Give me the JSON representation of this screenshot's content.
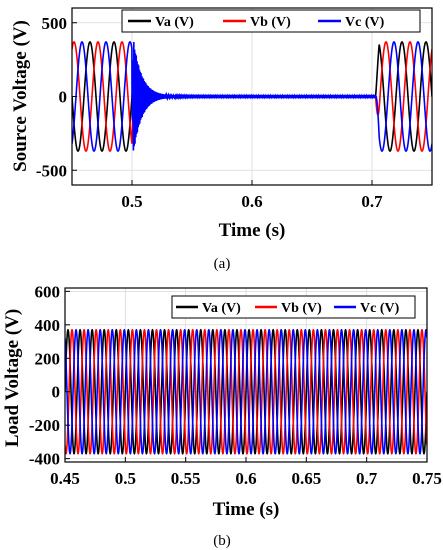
{
  "chart_data": [
    {
      "type": "line",
      "ylabel": "Source Voltage (V)",
      "xlabel": "Time (s)",
      "xlim": [
        0.45,
        0.75
      ],
      "ylim": [
        -600,
        600
      ],
      "xticks": [
        0.5,
        0.6,
        0.7
      ],
      "xtick_labels": [
        "0.5",
        "0.6",
        "0.7"
      ],
      "yticks": [
        -500,
        0,
        500
      ],
      "ytick_labels": [
        "-500",
        "0",
        "500"
      ],
      "grid": true,
      "legend_position": "top",
      "amplitude": 370,
      "frequency_hz": 50,
      "fault_start": 0.5,
      "fault_end": 0.703,
      "series": [
        {
          "name": "Va (V)",
          "color": "#000000",
          "phase_deg": 0
        },
        {
          "name": "Vb (V)",
          "color": "#ff0000",
          "phase_deg": -120
        },
        {
          "name": "Vc (V)",
          "color": "#0000ff",
          "phase_deg": 120
        }
      ],
      "caption": "(a)"
    },
    {
      "type": "line",
      "ylabel": "Load Voltage (V)",
      "xlabel": "Time (s)",
      "xlim": [
        0.45,
        0.75
      ],
      "ylim": [
        -420,
        620
      ],
      "xticks": [
        0.45,
        0.5,
        0.55,
        0.6,
        0.65,
        0.7,
        0.75
      ],
      "xtick_labels": [
        "0.45",
        "0.5",
        "0.55",
        "0.6",
        "0.65",
        "0.7",
        "0.75"
      ],
      "yticks": [
        -400,
        -200,
        0,
        200,
        400,
        600
      ],
      "ytick_labels": [
        "-400",
        "-200",
        "0",
        "200",
        "400",
        "600"
      ],
      "grid": true,
      "legend_position": "top-right",
      "amplitude": 370,
      "frequency_hz": 100,
      "series": [
        {
          "name": "Va (V)",
          "color": "#000000",
          "phase_deg": 0
        },
        {
          "name": "Vb (V)",
          "color": "#ff0000",
          "phase_deg": -120
        },
        {
          "name": "Vc (V)",
          "color": "#0000ff",
          "phase_deg": 120
        }
      ],
      "caption": "(b)"
    }
  ]
}
